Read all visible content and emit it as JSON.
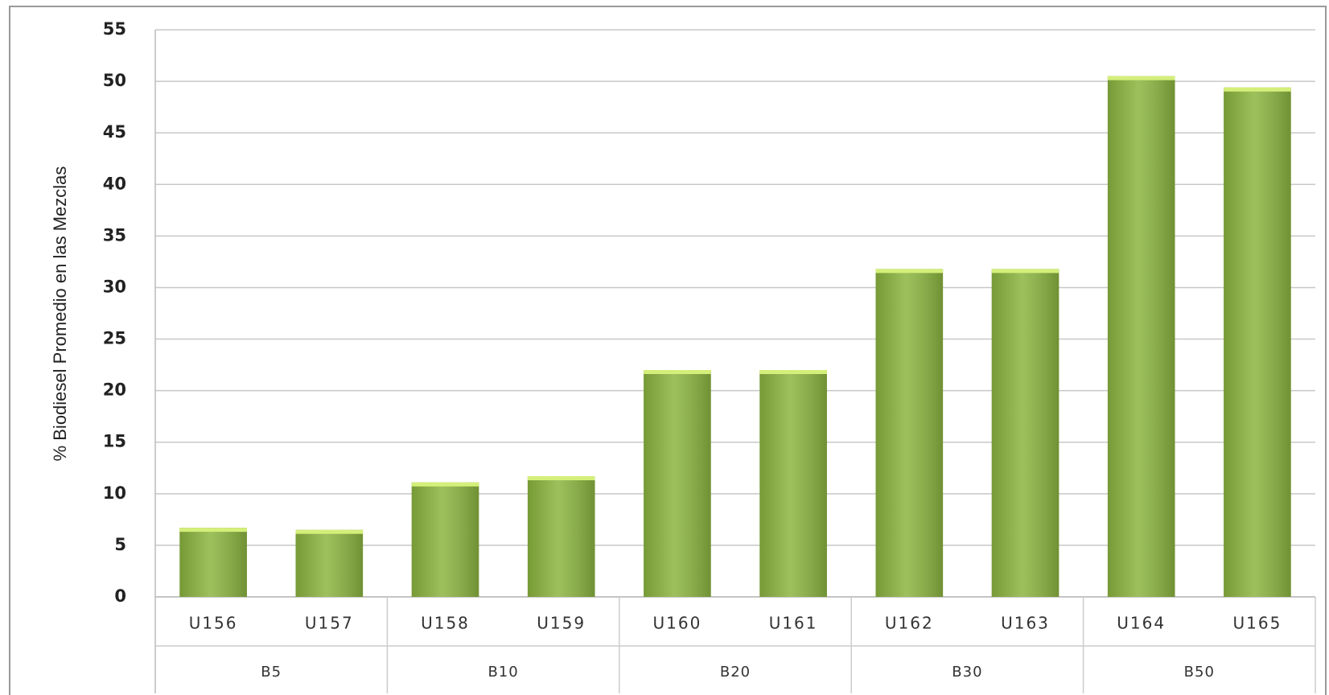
{
  "chart_data": {
    "type": "bar",
    "y_label": "% Biodiesel Promedio en las Mezclas",
    "categories": [
      "U156",
      "U157",
      "U158",
      "U159",
      "U160",
      "U161",
      "U162",
      "U163",
      "U164",
      "U165"
    ],
    "groups": [
      "B5",
      "B10",
      "B20",
      "B30",
      "B50"
    ],
    "values": [
      6.7,
      6.5,
      11.1,
      11.7,
      22,
      22,
      31.8,
      31.8,
      50.5,
      49.4
    ],
    "color": "#8cb540",
    "ylim": [
      0,
      55
    ],
    "yticks": [
      0,
      5,
      10,
      15,
      20,
      25,
      30,
      35,
      40,
      45,
      50,
      55
    ],
    "grid": true
  }
}
